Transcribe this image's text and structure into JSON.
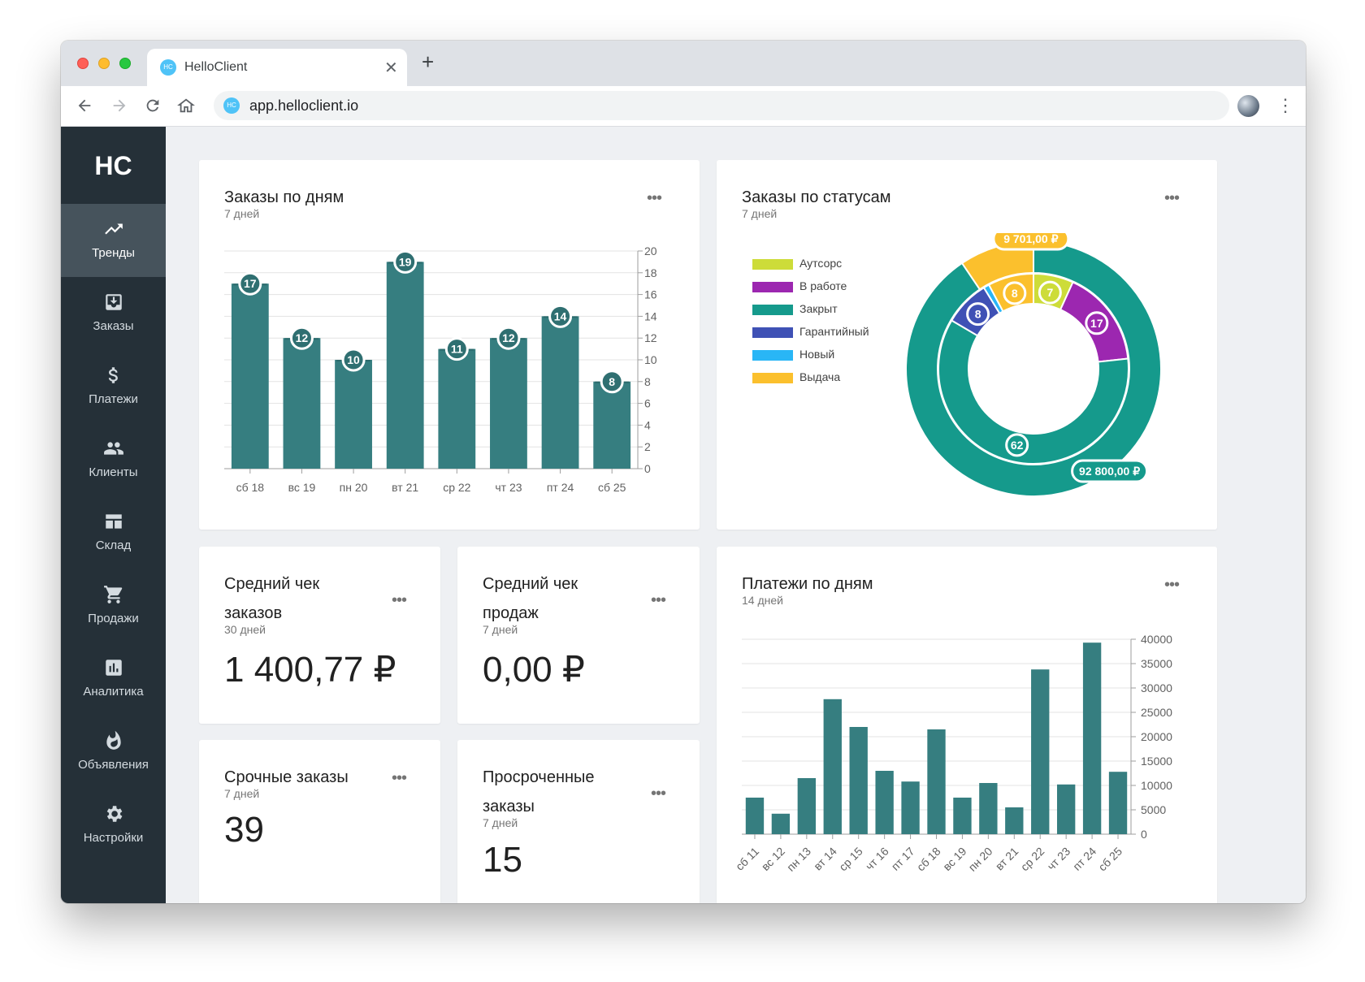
{
  "browser": {
    "tab_title": "HelloClient",
    "favicon_text": "HC",
    "url": "app.helloclient.io",
    "close_glyph": "✕",
    "new_tab_glyph": "+"
  },
  "sidebar": {
    "logo": "HC",
    "items": [
      {
        "label": "Тренды",
        "icon": "trending-up-icon",
        "active": true
      },
      {
        "label": "Заказы",
        "icon": "inbox-download-icon",
        "active": false
      },
      {
        "label": "Платежи",
        "icon": "dollar-icon",
        "active": false
      },
      {
        "label": "Клиенты",
        "icon": "people-icon",
        "active": false
      },
      {
        "label": "Склад",
        "icon": "warehouse-table-icon",
        "active": false
      },
      {
        "label": "Продажи",
        "icon": "shopping-cart-icon",
        "active": false
      },
      {
        "label": "Аналитика",
        "icon": "bar-chart-icon",
        "active": false
      },
      {
        "label": "Объявления",
        "icon": "flame-icon",
        "active": false
      },
      {
        "label": "Настройки",
        "icon": "gear-icon",
        "active": false
      }
    ]
  },
  "cards": {
    "orders_by_day": {
      "title": "Заказы по дням",
      "subtitle": "7 дней"
    },
    "orders_by_status": {
      "title": "Заказы по статусам",
      "subtitle": "7 дней"
    },
    "avg_order": {
      "title_line1": "Средний чек",
      "title_line2": "заказов",
      "subtitle": "30 дней",
      "value": "1 400,77 ₽"
    },
    "avg_sale": {
      "title_line1": "Средний чек",
      "title_line2": "продаж",
      "subtitle": "7 дней",
      "value": "0,00 ₽"
    },
    "urgent": {
      "title": "Срочные заказы",
      "subtitle": "7 дней",
      "value": "39"
    },
    "overdue": {
      "title_line1": "Просроченные",
      "title_line2": "заказы",
      "subtitle": "7 дней",
      "value": "15"
    },
    "payments_by_day": {
      "title": "Платежи по дням",
      "subtitle": "14 дней"
    }
  },
  "chart_data": [
    {
      "type": "bar",
      "categories": [
        "сб 18",
        "вс 19",
        "пн 20",
        "вт 21",
        "ср 22",
        "чт 23",
        "пт 24",
        "сб 25"
      ],
      "values": [
        17,
        12,
        10,
        19,
        11,
        12,
        14,
        8
      ],
      "ylim": [
        0,
        20
      ],
      "yticks": [
        0,
        2,
        4,
        6,
        8,
        10,
        12,
        14,
        16,
        18,
        20
      ],
      "color": "#367e80",
      "data_labels": true,
      "grid": true
    },
    {
      "type": "pie",
      "variant": "double-donut",
      "legend": [
        {
          "name": "Аутсорс",
          "color": "#cddc39"
        },
        {
          "name": "В работе",
          "color": "#9c27b0"
        },
        {
          "name": "Закрыт",
          "color": "#159a8c"
        },
        {
          "name": "Гарантийный",
          "color": "#3f51b5"
        },
        {
          "name": "Новый",
          "color": "#29b6f6"
        },
        {
          "name": "Выдача",
          "color": "#fbc02d"
        }
      ],
      "inner_counts": [
        {
          "name": "Аутсорс",
          "value": 7
        },
        {
          "name": "В работе",
          "value": 17
        },
        {
          "name": "Закрыт",
          "value": 62
        },
        {
          "name": "Гарантийный",
          "value": 8
        },
        {
          "name": "Новый",
          "value": 1
        },
        {
          "name": "Выдача",
          "value": 8
        }
      ],
      "outer_amounts": [
        {
          "name": "Закрыт",
          "value": 92800.0,
          "label": "92 800,00 ₽"
        },
        {
          "name": "Выдача",
          "value": 9701.0,
          "label": "9 701,00 ₽"
        }
      ],
      "legend_position": "left"
    },
    {
      "type": "bar",
      "categories": [
        "сб 11",
        "вс 12",
        "пн 13",
        "вт 14",
        "ср 15",
        "чт 16",
        "пт 17",
        "сб 18",
        "вс 19",
        "пн 20",
        "вт 21",
        "ср 22",
        "чт 23",
        "пт 24",
        "сб 25"
      ],
      "values": [
        7500,
        4200,
        11500,
        27700,
        22000,
        13000,
        10800,
        21500,
        7500,
        10500,
        5500,
        33800,
        10200,
        39300,
        12800
      ],
      "ylim": [
        0,
        40000
      ],
      "yticks": [
        0,
        5000,
        10000,
        15000,
        20000,
        25000,
        30000,
        35000,
        40000
      ],
      "color": "#367e80",
      "grid": true
    }
  ]
}
